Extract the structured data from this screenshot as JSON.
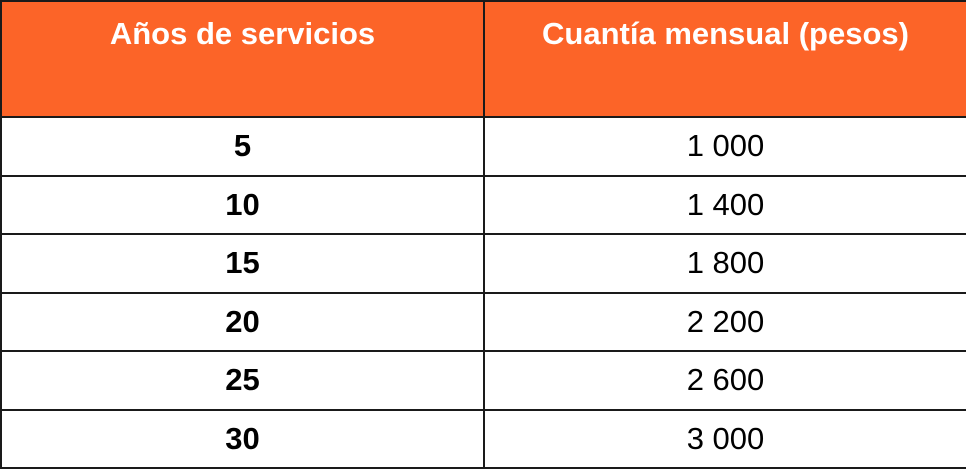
{
  "table": {
    "headers": [
      "Años de servicios",
      "Cuantía mensual (pesos)"
    ],
    "rows": [
      [
        "5",
        "1 000"
      ],
      [
        "10",
        "1 400"
      ],
      [
        "15",
        "1 800"
      ],
      [
        "20",
        "2 200"
      ],
      [
        "25",
        "2 600"
      ],
      [
        "30",
        "3 000"
      ]
    ]
  },
  "colors": {
    "header_background": "#fc6428",
    "header_text": "#ffffff",
    "border": "#1a1a1a"
  }
}
